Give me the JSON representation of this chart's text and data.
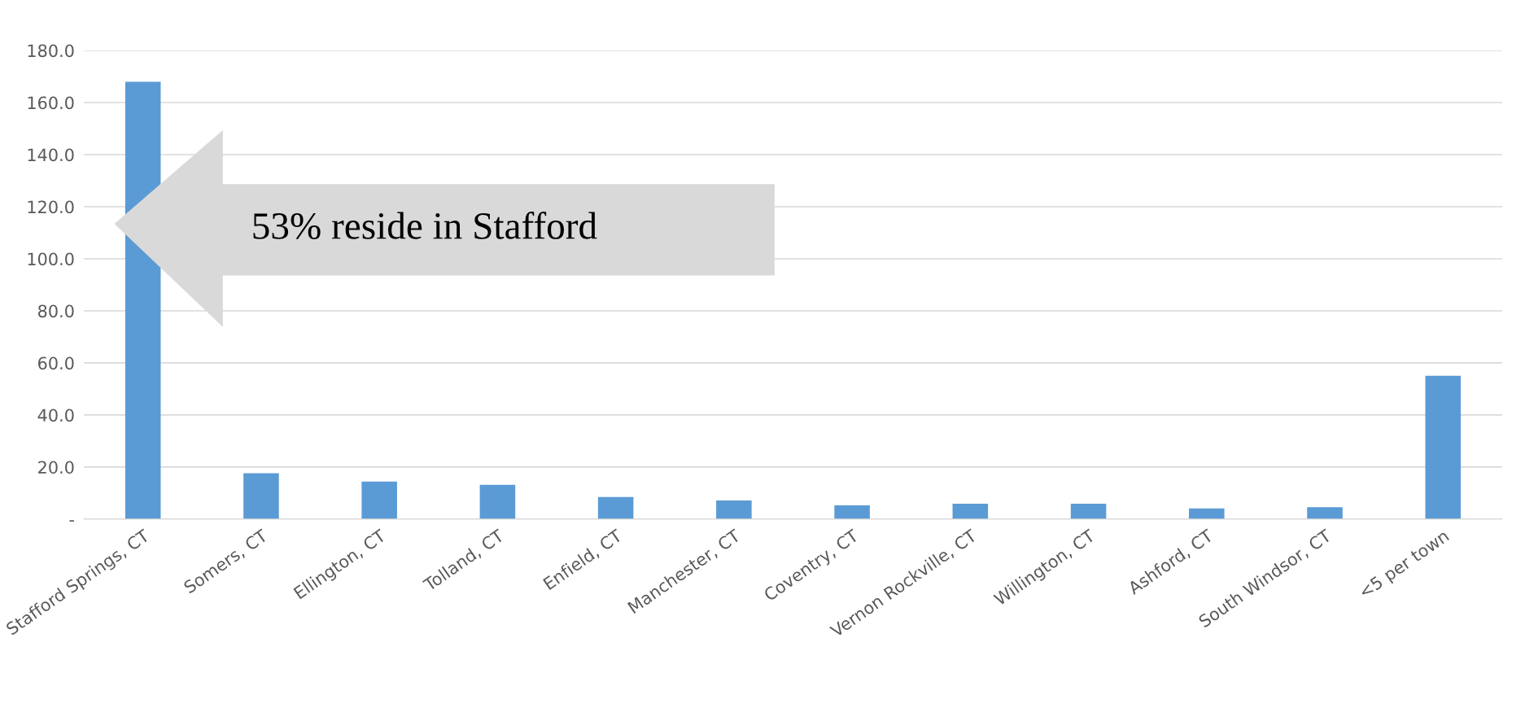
{
  "chart_data": {
    "type": "bar",
    "categories": [
      "Stafford Springs, CT",
      "Somers, CT",
      "Ellington, CT",
      "Tolland, CT",
      "Enfield, CT",
      "Manchester, CT",
      "Coventry, CT",
      "Vernon Rockville, CT",
      "Willington, CT",
      "Ashford, CT",
      "South Windsor, CT",
      "<5 per town"
    ],
    "values": [
      168,
      17.6,
      14.4,
      13.2,
      8.5,
      7.2,
      5.3,
      5.9,
      5.9,
      4.1,
      4.6,
      55.1
    ],
    "color": "#5b9bd5",
    "ylim": [
      0,
      180
    ],
    "yticks": [
      {
        "value": 0,
        "label": "-"
      },
      {
        "value": 20,
        "label": "20.0"
      },
      {
        "value": 40,
        "label": "40.0"
      },
      {
        "value": 60,
        "label": "60.0"
      },
      {
        "value": 80,
        "label": "80.0"
      },
      {
        "value": 100,
        "label": "100.0"
      },
      {
        "value": 120,
        "label": "120.0"
      },
      {
        "value": 140,
        "label": "140.0"
      },
      {
        "value": 160,
        "label": "160.0"
      },
      {
        "value": 180,
        "label": "180.0"
      }
    ],
    "grid": "y",
    "annotations": [
      "53% reside in Stafford"
    ]
  }
}
